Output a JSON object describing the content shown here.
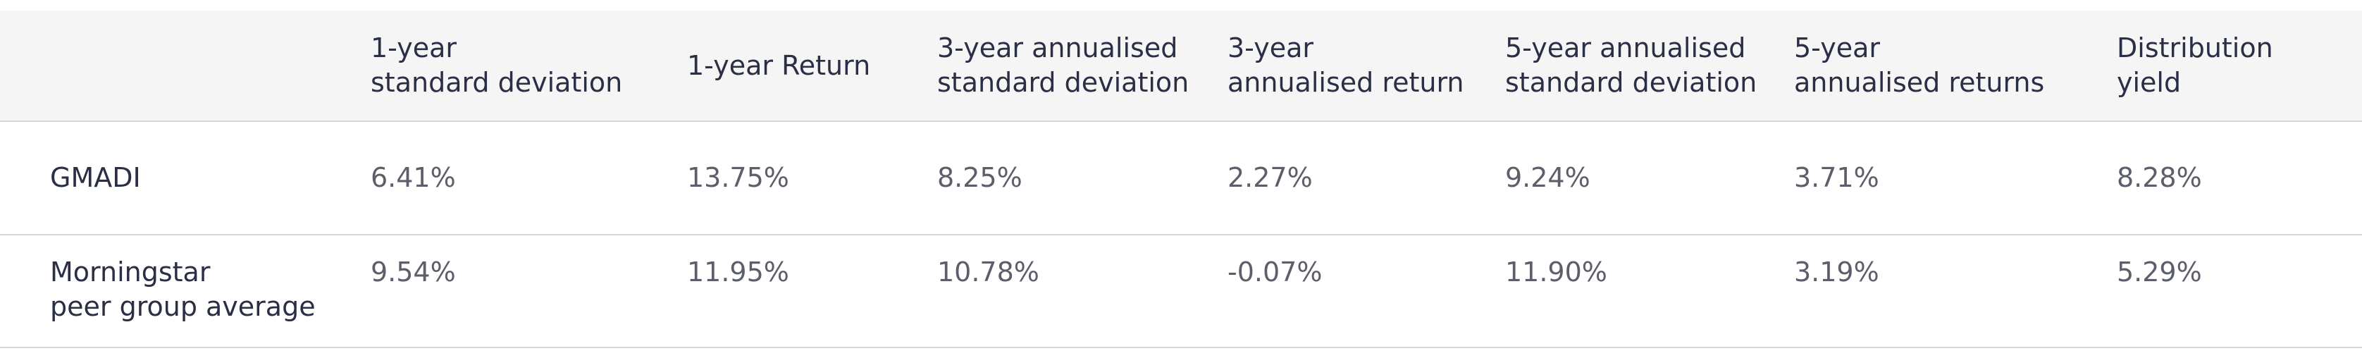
{
  "table": {
    "columns": [
      "1-year\nstandard deviation",
      "1-year Return",
      "3-year annualised\nstandard deviation",
      "3-year\nannualised return",
      "5-year annualised\nstandard deviation",
      "5-year\nannualised returns",
      "Distribution\nyield"
    ],
    "rows": [
      {
        "label": "GMADI",
        "values": [
          "6.41%",
          "13.75%",
          "8.25%",
          "2.27%",
          "9.24%",
          "3.71%",
          "8.28%"
        ]
      },
      {
        "label": "Morningstar\npeer group average",
        "values": [
          "9.54%",
          "11.95%",
          "10.78%",
          "-0.07%",
          "11.90%",
          "3.19%",
          "5.29%"
        ]
      }
    ]
  }
}
